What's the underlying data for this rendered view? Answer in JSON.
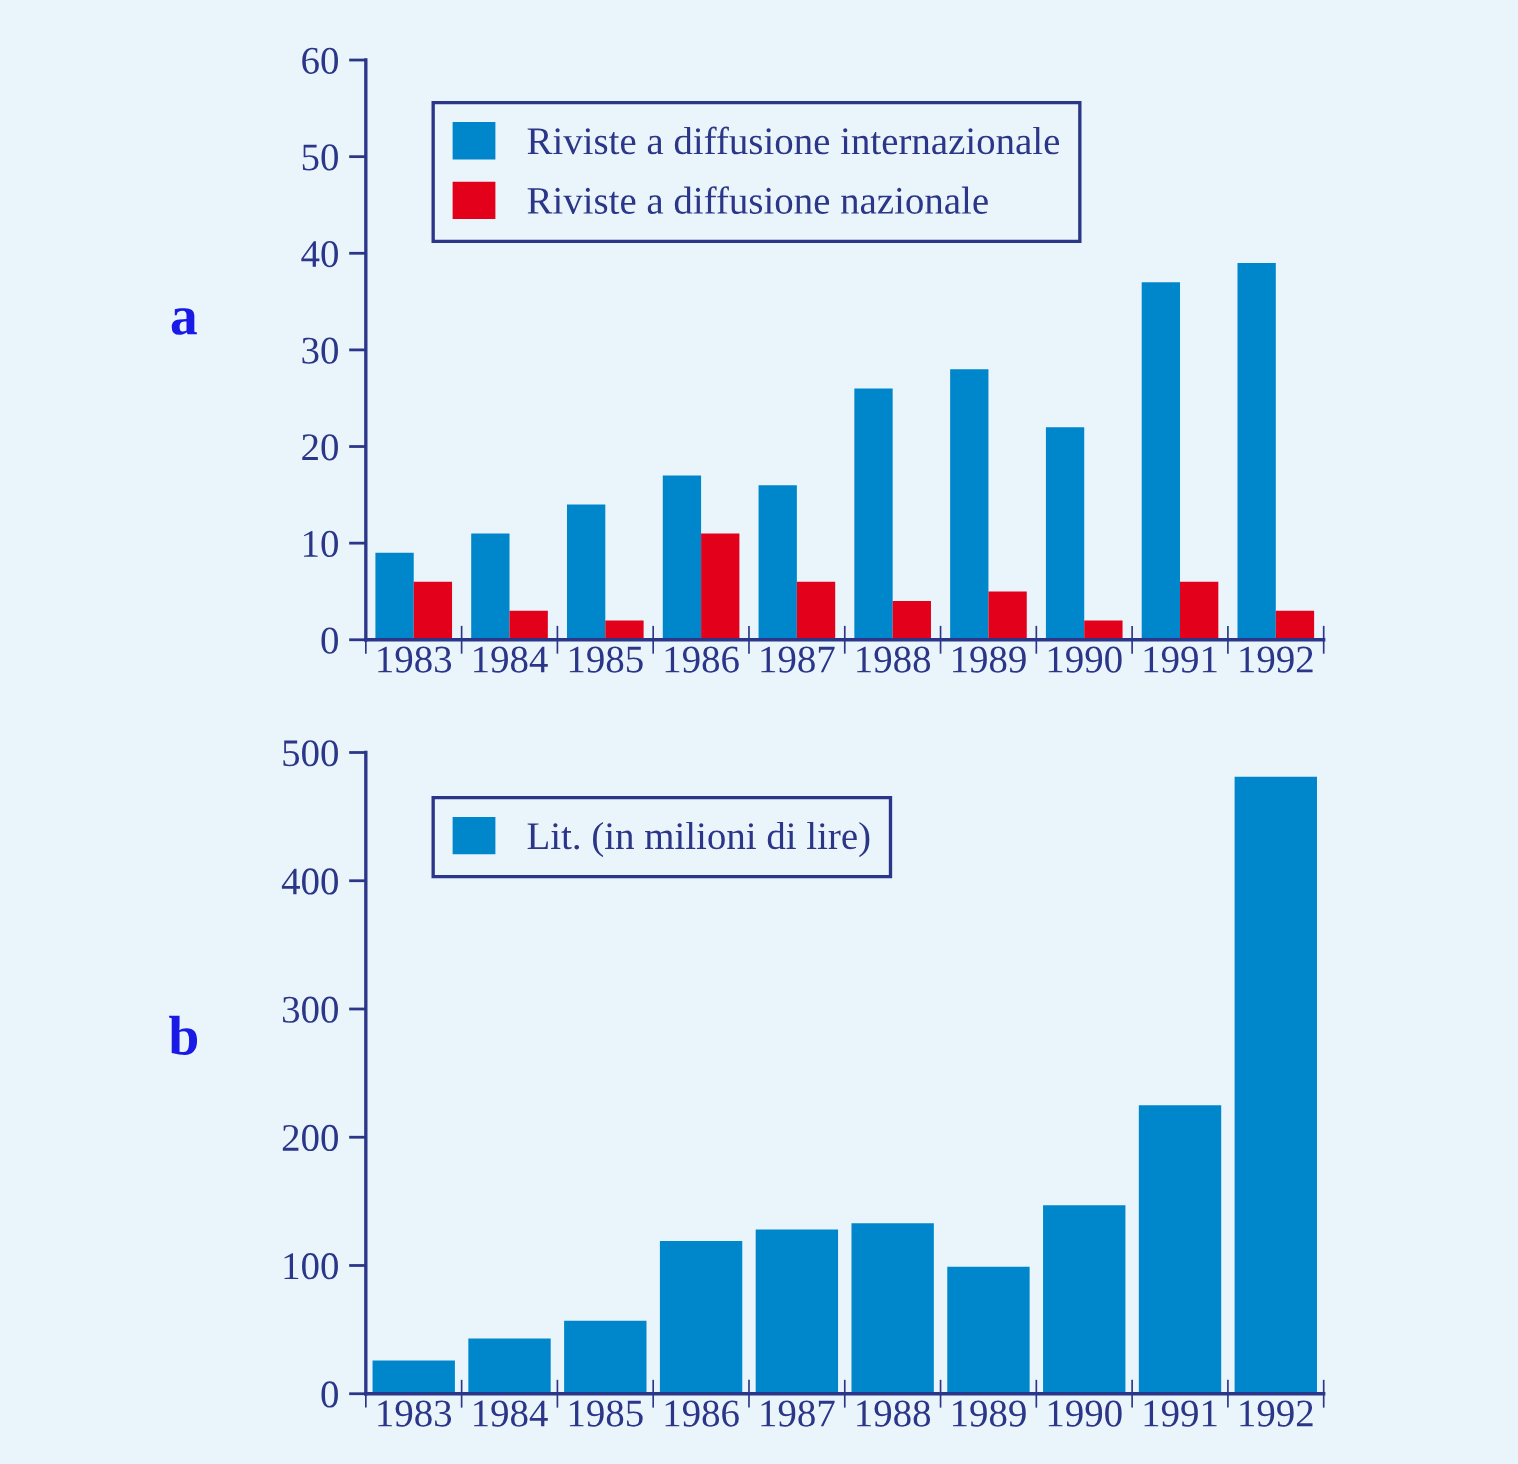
{
  "chart_data": [
    {
      "type": "bar",
      "categories": [
        "1983",
        "1984",
        "1985",
        "1986",
        "1987",
        "1988",
        "1989",
        "1990",
        "1991",
        "1992"
      ],
      "series": [
        {
          "name": "Riviste a diffusione internazionale",
          "color": "#0087cb",
          "values": [
            9,
            11,
            14,
            17,
            16,
            26,
            28,
            22,
            37,
            39
          ]
        },
        {
          "name": "Riviste a diffusione nazionale",
          "color": "#e2001a",
          "values": [
            6,
            3,
            2,
            11,
            6,
            4,
            5,
            2,
            6,
            3
          ]
        }
      ],
      "ylim": [
        0,
        60
      ],
      "yticks": [
        0,
        10,
        20,
        30,
        40,
        50,
        60
      ],
      "legend": "top left",
      "grid": false,
      "annotations": [
        "a"
      ]
    },
    {
      "type": "bar",
      "categories": [
        "1983",
        "1984",
        "1985",
        "1986",
        "1987",
        "1988",
        "1989",
        "1990",
        "1991",
        "1992"
      ],
      "series": [
        {
          "name": "Lit. (in milioni di lire)",
          "color": "#0087cb",
          "values": [
            26,
            43,
            57,
            119,
            128,
            133,
            99,
            147,
            225,
            481
          ]
        }
      ],
      "ylim": [
        0,
        500
      ],
      "yticks": [
        0,
        100,
        200,
        300,
        400,
        500
      ],
      "legend": "top left",
      "grid": false,
      "annotations": [
        "b"
      ]
    }
  ]
}
